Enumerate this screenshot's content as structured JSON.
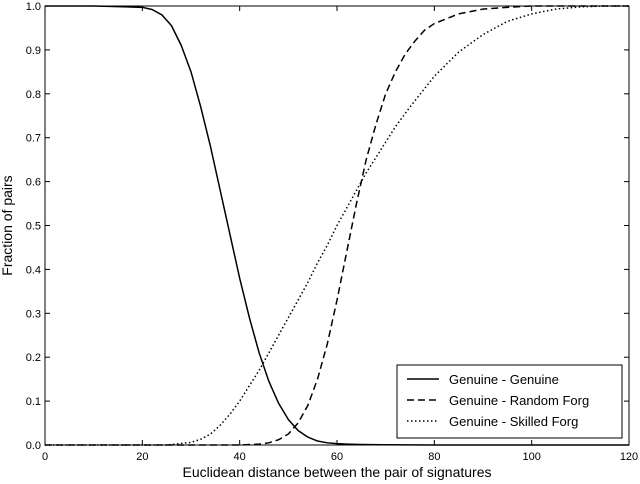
{
  "chart_data": {
    "type": "line",
    "xlabel": "Euclidean distance between the pair of signatures",
    "ylabel": "Fraction of pairs",
    "xlim": [
      0,
      120
    ],
    "ylim": [
      0,
      1.0
    ],
    "xticks": [
      0,
      20,
      40,
      60,
      80,
      100,
      120
    ],
    "yticks": [
      0.0,
      0.1,
      0.2,
      0.3,
      0.4,
      0.5,
      0.6,
      0.7,
      0.8,
      0.9,
      1.0
    ],
    "xtick_labels": [
      "0",
      "20",
      "40",
      "60",
      "80",
      "100",
      "120"
    ],
    "ytick_labels": [
      "0.0",
      "0.1",
      "0.2",
      "0.3",
      "0.4",
      "0.5",
      "0.6",
      "0.7",
      "0.8",
      "0.9",
      "1.0"
    ],
    "grid": false,
    "legend_position": "lower-right",
    "series": [
      {
        "name": "Genuine - Genuine",
        "style": "solid",
        "color": "#000000",
        "x": [
          0,
          10,
          20,
          22,
          24,
          26,
          28,
          30,
          32,
          34,
          36,
          38,
          40,
          42,
          44,
          46,
          48,
          50,
          52,
          54,
          56,
          58,
          60,
          62,
          65,
          70,
          80,
          90,
          100,
          120
        ],
        "y": [
          1.0,
          1.0,
          0.997,
          0.992,
          0.98,
          0.955,
          0.91,
          0.85,
          0.77,
          0.68,
          0.58,
          0.48,
          0.38,
          0.29,
          0.21,
          0.145,
          0.095,
          0.058,
          0.033,
          0.018,
          0.009,
          0.005,
          0.003,
          0.002,
          0.001,
          0.0005,
          0.0,
          0.0,
          0.0,
          0.0
        ]
      },
      {
        "name": "Genuine - Random Forg",
        "style": "dashed",
        "color": "#000000",
        "x": [
          0,
          40,
          44,
          46,
          48,
          50,
          52,
          54,
          56,
          58,
          60,
          62,
          64,
          66,
          68,
          70,
          72,
          74,
          76,
          78,
          80,
          85,
          90,
          95,
          100,
          110,
          120
        ],
        "y": [
          0.0,
          0.0,
          0.002,
          0.005,
          0.012,
          0.025,
          0.05,
          0.09,
          0.15,
          0.23,
          0.33,
          0.44,
          0.55,
          0.65,
          0.73,
          0.8,
          0.85,
          0.89,
          0.92,
          0.945,
          0.96,
          0.982,
          0.993,
          0.997,
          1.0,
          1.0,
          1.0
        ]
      },
      {
        "name": "Genuine - Skilled Forg",
        "style": "dotted",
        "color": "#000000",
        "x": [
          0,
          25,
          30,
          32,
          34,
          36,
          38,
          40,
          42,
          44,
          46,
          48,
          50,
          52,
          54,
          56,
          58,
          60,
          62,
          64,
          66,
          68,
          70,
          72,
          75,
          80,
          85,
          90,
          95,
          100,
          105,
          110,
          115,
          120
        ],
        "y": [
          0.0,
          0.0,
          0.006,
          0.013,
          0.025,
          0.045,
          0.07,
          0.1,
          0.135,
          0.17,
          0.21,
          0.25,
          0.29,
          0.33,
          0.37,
          0.415,
          0.455,
          0.5,
          0.54,
          0.58,
          0.62,
          0.655,
          0.69,
          0.725,
          0.77,
          0.84,
          0.895,
          0.935,
          0.965,
          0.982,
          0.993,
          0.998,
          1.0,
          1.0
        ]
      }
    ]
  }
}
